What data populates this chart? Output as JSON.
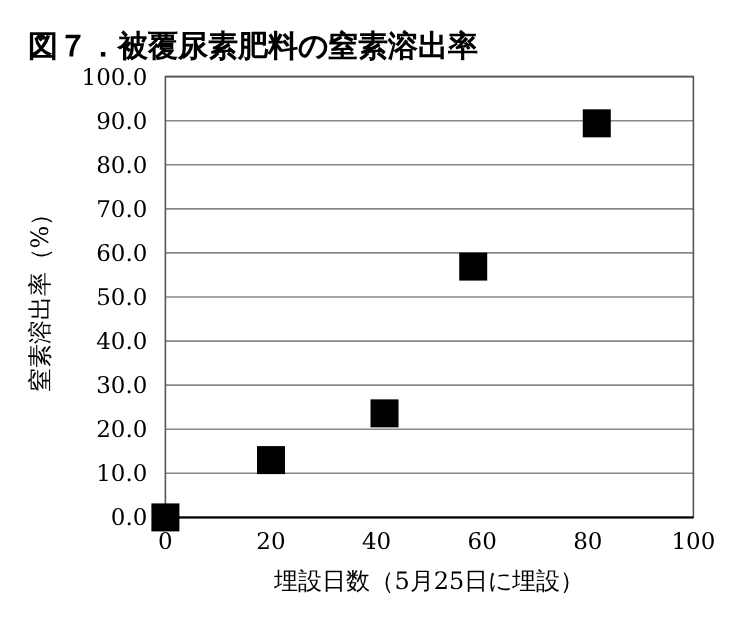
{
  "chart_data": {
    "type": "scatter",
    "title": "図７．被覆尿素肥料の窒素溶出率",
    "xlabel": "埋設日数（5月25日に埋設）",
    "ylabel": "窒素溶出率（%）",
    "x": [
      0,
      20,
      41.5,
      58.3,
      81.7
    ],
    "values": [
      0,
      13,
      23.6,
      56.9,
      89.4
    ],
    "color": "#000000",
    "marker": "square",
    "grid": "y",
    "xlim": [
      0,
      100
    ],
    "xticks": [
      0,
      20,
      40,
      60,
      80,
      100
    ],
    "ylim": [
      0,
      100
    ],
    "yticks": [
      {
        "value": 0,
        "label": "0.0"
      },
      {
        "value": 10,
        "label": "10.0"
      },
      {
        "value": 20,
        "label": "20.0"
      },
      {
        "value": 30,
        "label": "30.0"
      },
      {
        "value": 40,
        "label": "40.0"
      },
      {
        "value": 50,
        "label": "50.0"
      },
      {
        "value": 60,
        "label": "60.0"
      },
      {
        "value": 70,
        "label": "70.0"
      },
      {
        "value": 80,
        "label": "80.0"
      },
      {
        "value": 90,
        "label": "90.0"
      },
      {
        "value": 100,
        "label": "100.0"
      }
    ]
  }
}
